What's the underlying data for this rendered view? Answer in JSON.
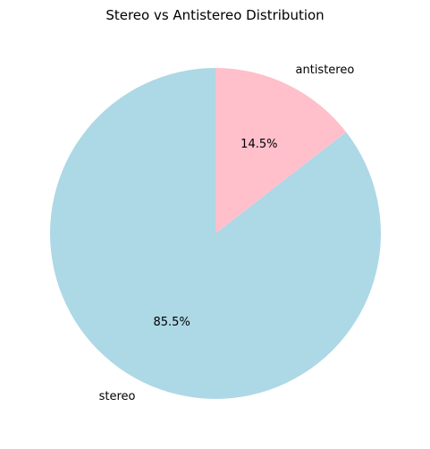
{
  "chart_data": {
    "type": "pie",
    "title": "Stereo vs Antistereo Distribution",
    "categories": [
      "stereo",
      "antistereo"
    ],
    "values": [
      85.5,
      14.5
    ],
    "percent_labels": [
      "85.5%",
      "14.5%"
    ],
    "colors": [
      "#add8e6",
      "#ffc0cb"
    ],
    "start_angle_deg": 90,
    "direction": "counterclockwise",
    "legend": "none"
  }
}
